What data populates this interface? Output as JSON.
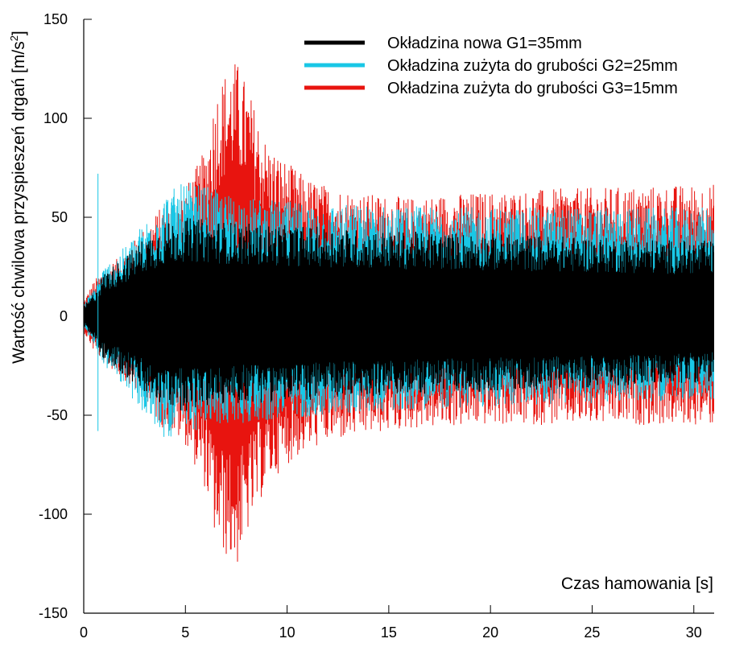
{
  "chart_data": {
    "type": "line",
    "title": "",
    "xlabel": "Czas hamowania [s]",
    "ylabel": "Wartość chwilowa przyspieszeń drgań [m/s",
    "ylabel_sup": "2",
    "ylabel_tail": "]",
    "xlim": [
      0,
      31
    ],
    "ylim": [
      -150,
      150
    ],
    "xticks": [
      0,
      5,
      10,
      15,
      20,
      25,
      30
    ],
    "yticks": [
      150,
      100,
      50,
      0,
      -50,
      -100,
      -150
    ],
    "legend_position": "top-right",
    "series": [
      {
        "name": "Okładzina zużyta do grubości G3=15mm",
        "color": "#e8140f",
        "envelope": {
          "x": [
            0,
            0.5,
            1,
            2,
            3,
            4,
            5,
            6,
            6.5,
            7,
            7.5,
            8,
            9,
            10,
            11,
            12,
            14,
            16,
            18,
            20,
            22,
            25,
            28,
            31
          ],
          "upper": [
            8,
            18,
            24,
            32,
            45,
            58,
            65,
            85,
            115,
            125,
            130,
            118,
            88,
            78,
            70,
            66,
            62,
            60,
            62,
            63,
            64,
            65,
            66,
            67
          ],
          "lower": [
            -8,
            -18,
            -24,
            -32,
            -45,
            -58,
            -65,
            -88,
            -115,
            -122,
            -128,
            -112,
            -85,
            -75,
            -68,
            -64,
            -60,
            -57,
            -56,
            -55,
            -55,
            -55,
            -55,
            -55
          ]
        }
      },
      {
        "name": "Okładzina zużyta do grubości G2=25mm",
        "color": "#19c7e6",
        "envelope": {
          "x": [
            0,
            0.5,
            1,
            2,
            3,
            4,
            5,
            6,
            7,
            8,
            10,
            12,
            15,
            20,
            25,
            31
          ],
          "upper": [
            6,
            15,
            25,
            35,
            48,
            62,
            68,
            66,
            62,
            60,
            58,
            57,
            56,
            55,
            55,
            55
          ],
          "lower": [
            -6,
            -15,
            -25,
            -35,
            -52,
            -62,
            -60,
            -56,
            -55,
            -54,
            -52,
            -50,
            -48,
            -46,
            -44,
            -42
          ]
        }
      },
      {
        "name": "Okładzina nowa G1=35mm",
        "color": "#000000",
        "envelope": {
          "x": [
            0,
            0.5,
            1,
            2,
            3,
            4,
            5,
            6,
            7,
            8,
            10,
            12,
            15,
            20,
            25,
            31
          ],
          "upper": [
            5,
            12,
            22,
            30,
            40,
            47,
            50,
            49,
            48,
            47,
            46,
            45,
            43,
            42,
            40,
            38
          ],
          "lower": [
            -5,
            -12,
            -22,
            -30,
            -40,
            -46,
            -48,
            -46,
            -45,
            -44,
            -43,
            -42,
            -40,
            -38,
            -36,
            -33
          ]
        }
      }
    ],
    "legend_order": [
      2,
      1,
      0
    ]
  }
}
